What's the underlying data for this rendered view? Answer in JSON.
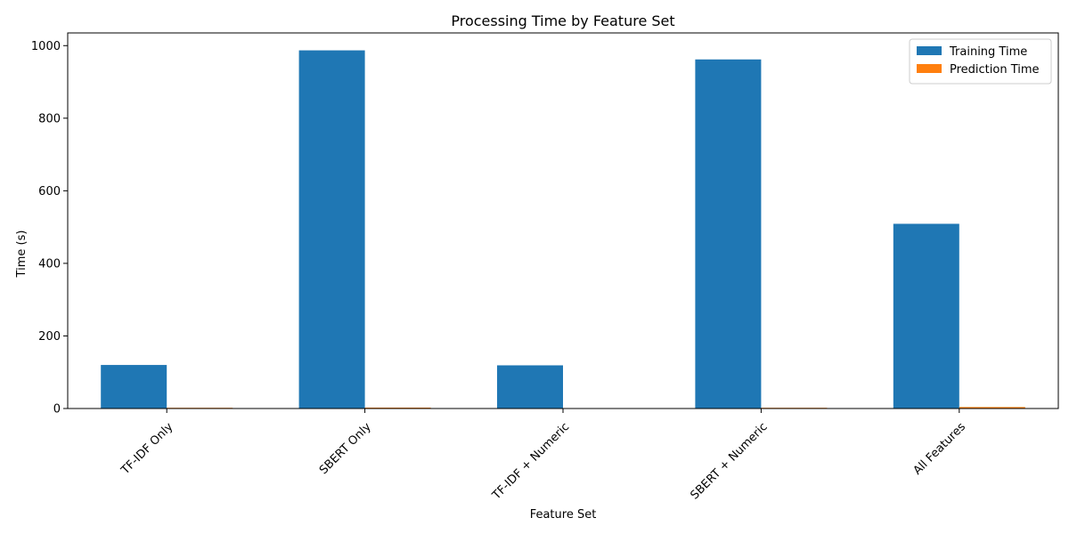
{
  "chart_data": {
    "type": "bar",
    "title": "Processing Time by Feature Set",
    "xlabel": "Feature Set",
    "ylabel": "Time (s)",
    "categories": [
      "TF-IDF Only",
      "SBERT Only",
      "TF-IDF + Numeric",
      "SBERT + Numeric",
      "All Features"
    ],
    "series": [
      {
        "name": "Training Time",
        "color": "#1f77b4",
        "values": [
          120,
          987,
          119,
          962,
          509
        ]
      },
      {
        "name": "Prediction Time",
        "color": "#ff7f0e",
        "values": [
          2.0,
          2.5,
          1.0,
          2.0,
          4.0
        ]
      }
    ],
    "ylim": [
      0,
      1035
    ],
    "yticks": [
      0,
      200,
      400,
      600,
      800,
      1000
    ],
    "grid": false,
    "legend_position": "top-right"
  }
}
